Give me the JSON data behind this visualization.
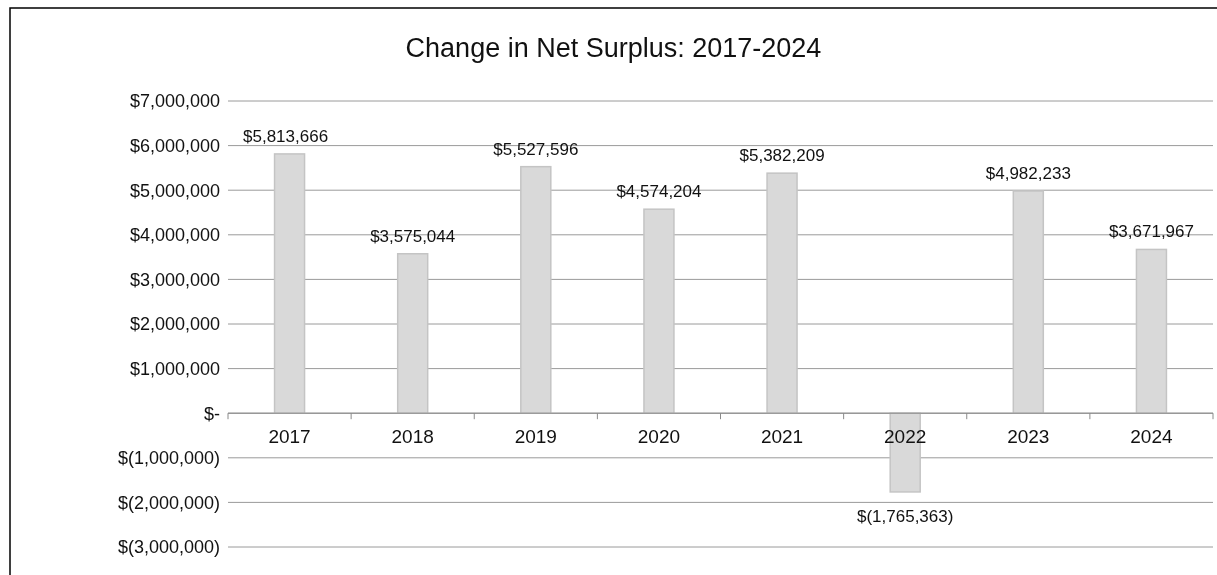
{
  "chart_data": {
    "type": "bar",
    "title": "Change in Net Surplus: 2017-2024",
    "categories": [
      "2017",
      "2018",
      "2019",
      "2020",
      "2021",
      "2022",
      "2023",
      "2024"
    ],
    "values": [
      5813666,
      3575044,
      5527596,
      4574204,
      5382209,
      -1765363,
      4982233,
      3671967
    ],
    "value_labels": [
      "$5,813,666",
      "$3,575,044",
      "$5,527,596",
      "$4,574,204",
      "$5,382,209",
      "$(1,765,363)",
      "$4,982,233",
      "$3,671,967"
    ],
    "color": "#d9d9d9",
    "ylim": [
      -3000000,
      7000000
    ],
    "yticks": [
      {
        "value": -3000000,
        "label": "$(3,000,000)"
      },
      {
        "value": -2000000,
        "label": "$(2,000,000)"
      },
      {
        "value": -1000000,
        "label": "$(1,000,000)"
      },
      {
        "value": 0,
        "label": "$-"
      },
      {
        "value": 1000000,
        "label": "$1,000,000"
      },
      {
        "value": 2000000,
        "label": "$2,000,000"
      },
      {
        "value": 3000000,
        "label": "$3,000,000"
      },
      {
        "value": 4000000,
        "label": "$4,000,000"
      },
      {
        "value": 5000000,
        "label": "$5,000,000"
      },
      {
        "value": 6000000,
        "label": "$6,000,000"
      },
      {
        "value": 7000000,
        "label": "$7,000,000"
      }
    ],
    "grid": "y"
  }
}
